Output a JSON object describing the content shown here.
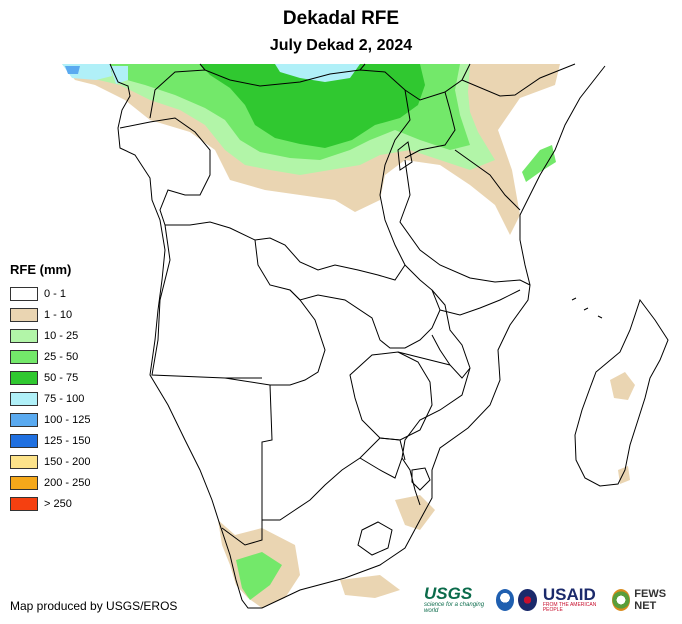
{
  "map": {
    "title": "Dekadal RFE",
    "subtitle": "July Dekad 2, 2024",
    "region": "Southern Africa",
    "variable": "Rainfall estimate (RFE)"
  },
  "legend": {
    "title": "RFE (mm)",
    "classes": [
      {
        "label": "0 - 1",
        "color": "#ffffff"
      },
      {
        "label": "1 - 10",
        "color": "#ead5b2"
      },
      {
        "label": "10 - 25",
        "color": "#b2f5a8"
      },
      {
        "label": "25 - 50",
        "color": "#73e86a"
      },
      {
        "label": "50 - 75",
        "color": "#30c830"
      },
      {
        "label": "75 - 100",
        "color": "#b0f0f8"
      },
      {
        "label": "100 - 125",
        "color": "#5aaaf0"
      },
      {
        "label": "125 - 150",
        "color": "#2070e0"
      },
      {
        "label": "150 - 200",
        "color": "#fde38a"
      },
      {
        "label": "200 - 250",
        "color": "#f5a81a"
      },
      {
        "label": "> 250",
        "color": "#f54010"
      }
    ]
  },
  "credit": "Map produced by USGS/EROS",
  "logos": {
    "usgs": "USGS",
    "usgs_tagline": "science for a changing world",
    "usaid": "USAID",
    "usaid_tagline": "FROM THE AMERICAN PEOPLE",
    "fews": "FEWS NET"
  }
}
